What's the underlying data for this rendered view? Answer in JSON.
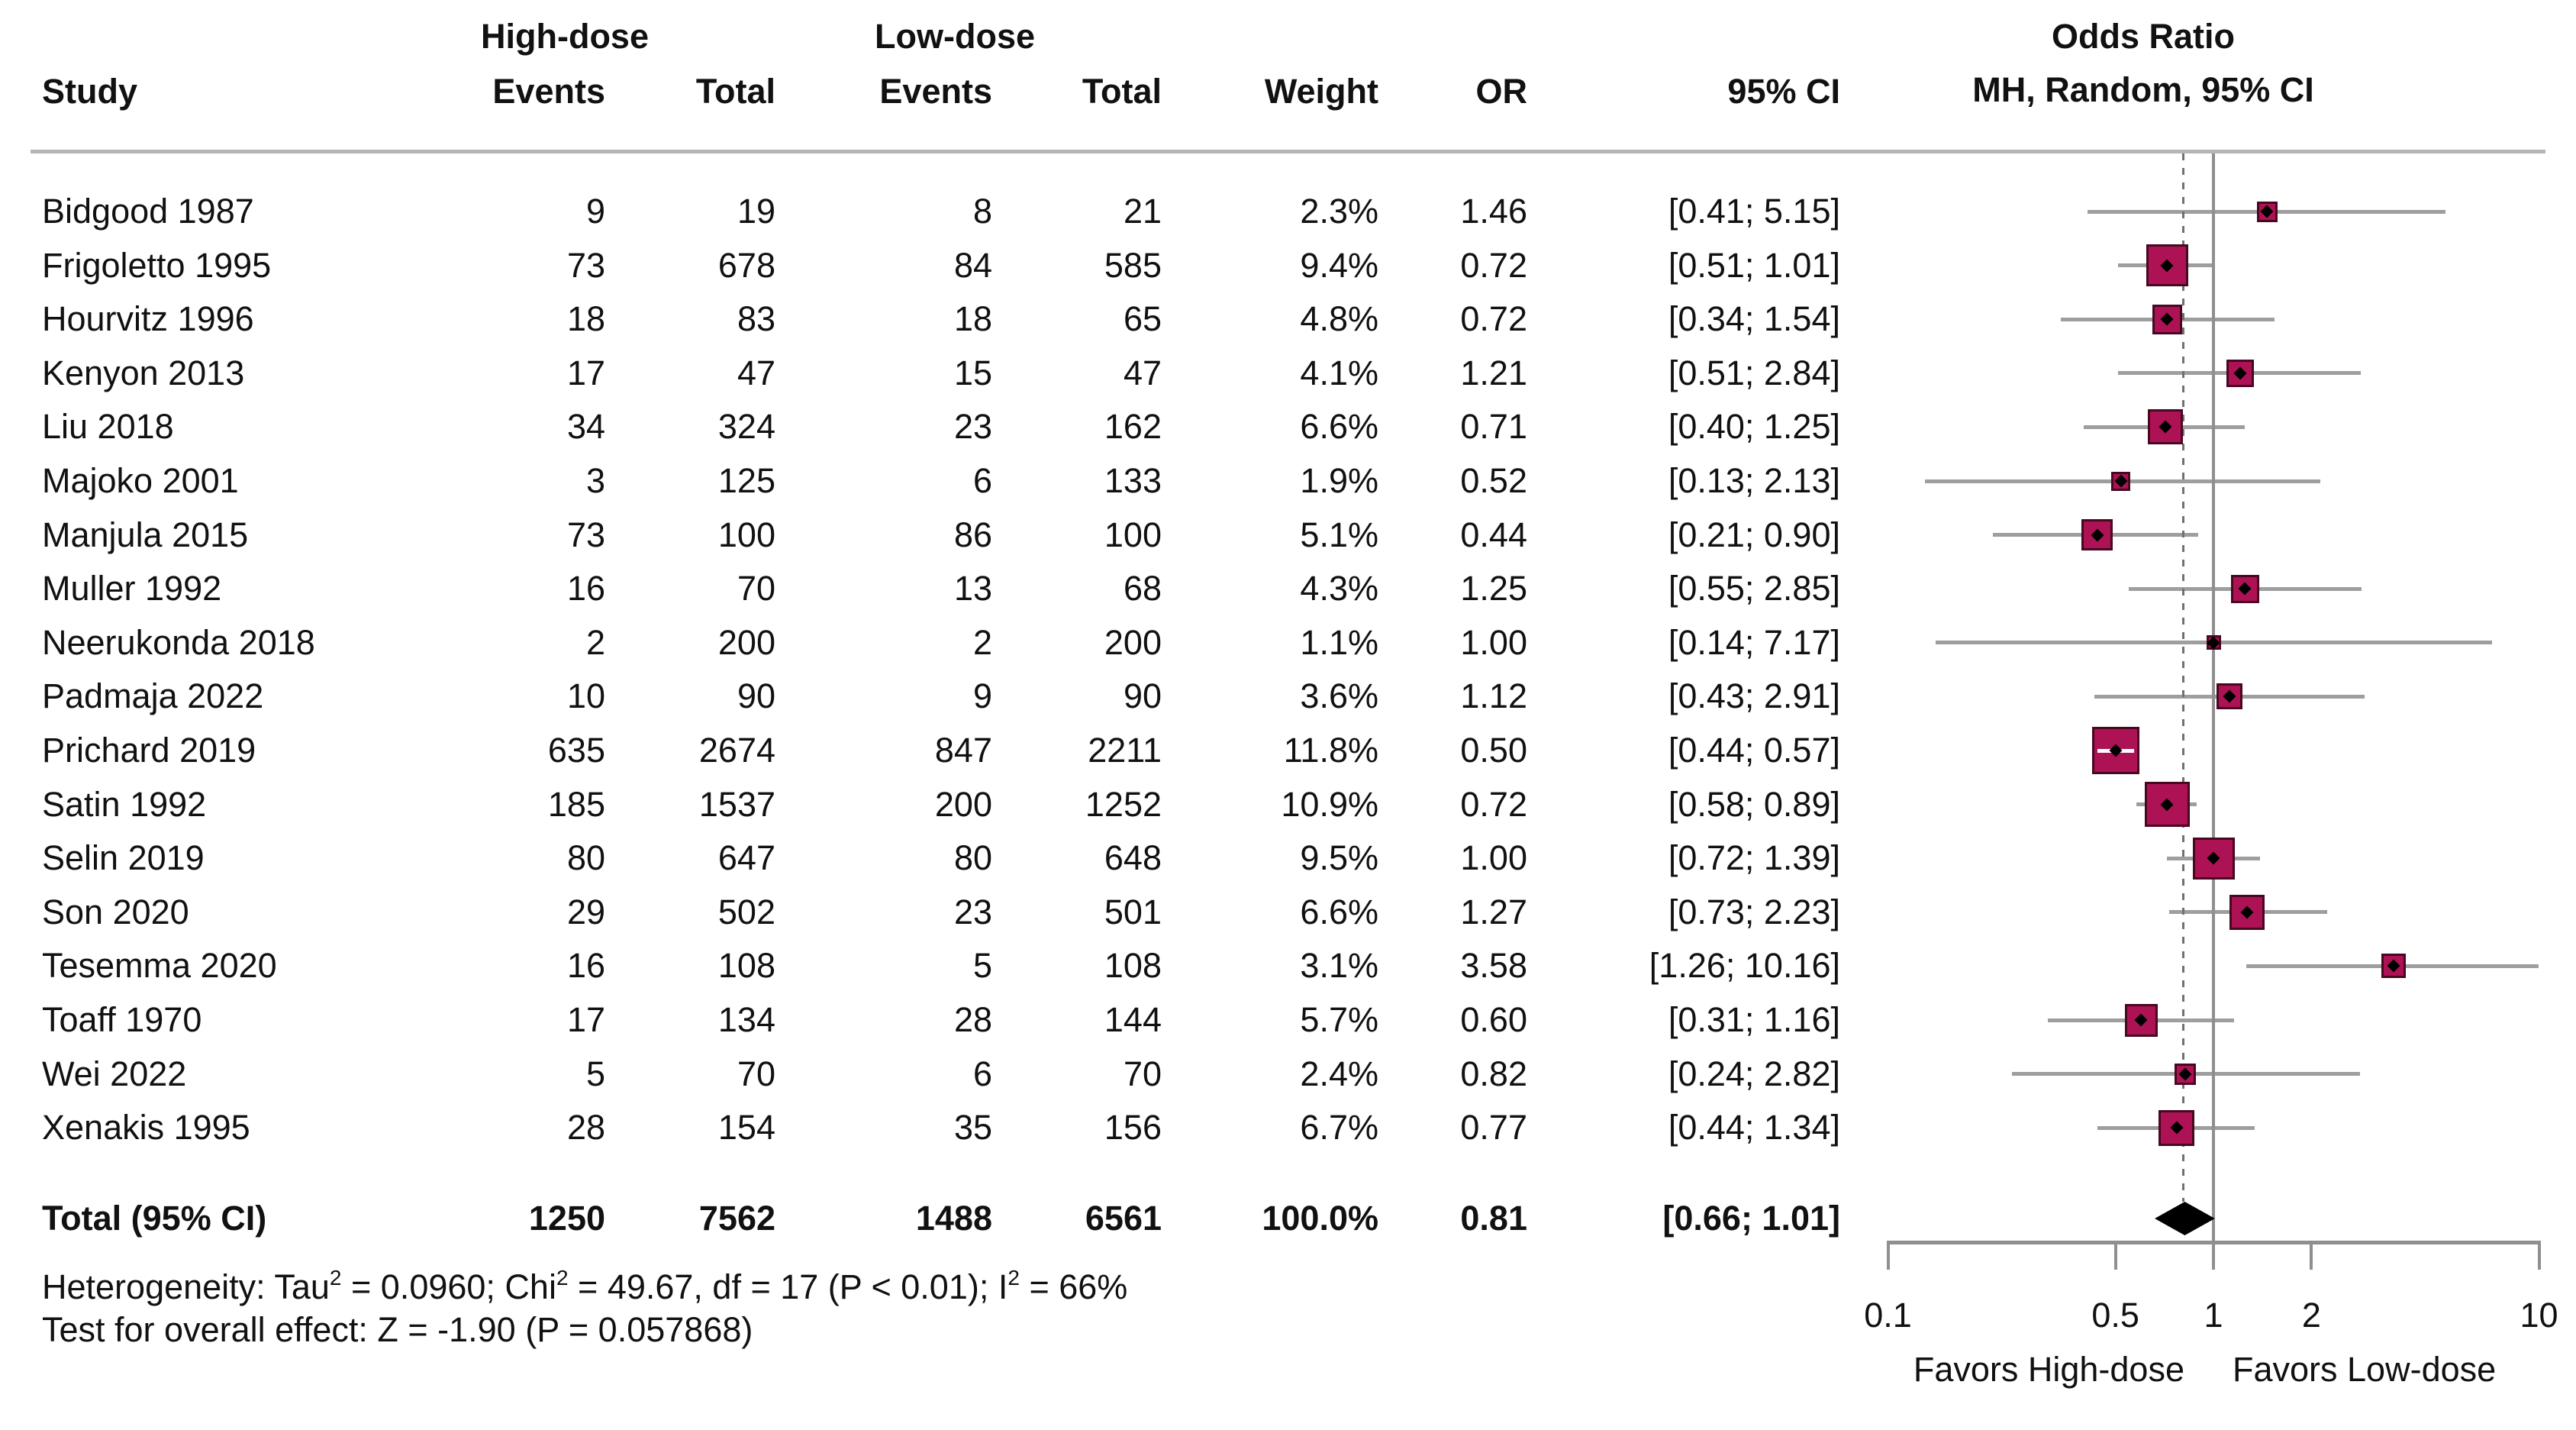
{
  "table": {
    "headers": {
      "study": "Study",
      "group_high": "High-dose",
      "group_low": "Low-dose",
      "events": "Events",
      "total": "Total",
      "weight": "Weight",
      "or": "OR",
      "ci": "95% CI",
      "plot_line1": "Odds Ratio",
      "plot_line2": "MH, Random, 95% CI"
    }
  },
  "chart_data": {
    "type": "scatter",
    "subtype": "forest_plot_meta_analysis",
    "x_scale": "log10",
    "x_range": [
      0.1,
      10
    ],
    "reference_value": 1,
    "pooled_or": 0.81,
    "grid": false,
    "axis_ticks": [
      {
        "label": "0.1",
        "value": 0.1
      },
      {
        "label": "0.5",
        "value": 0.5
      },
      {
        "label": "1",
        "value": 1
      },
      {
        "label": "2",
        "value": 2
      },
      {
        "label": "10",
        "value": 10
      }
    ],
    "favors_left": "Favors High-dose",
    "favors_right": "Favors Low-dose",
    "studies": [
      {
        "name": "Bidgood 1987",
        "high_events": "9",
        "high_total": "19",
        "low_events": "8",
        "low_total": "21",
        "weight_label": "2.3%",
        "weight_pct": 2.3,
        "or": 1.46,
        "or_label": "1.46",
        "ci_low": 0.41,
        "ci_high": 5.15,
        "ci_label": "[0.41; 5.15]"
      },
      {
        "name": "Frigoletto 1995",
        "high_events": "73",
        "high_total": "678",
        "low_events": "84",
        "low_total": "585",
        "weight_label": "9.4%",
        "weight_pct": 9.4,
        "or": 0.72,
        "or_label": "0.72",
        "ci_low": 0.51,
        "ci_high": 1.01,
        "ci_label": "[0.51; 1.01]"
      },
      {
        "name": "Hourvitz 1996",
        "high_events": "18",
        "high_total": "83",
        "low_events": "18",
        "low_total": "65",
        "weight_label": "4.8%",
        "weight_pct": 4.8,
        "or": 0.72,
        "or_label": "0.72",
        "ci_low": 0.34,
        "ci_high": 1.54,
        "ci_label": "[0.34; 1.54]"
      },
      {
        "name": "Kenyon 2013",
        "high_events": "17",
        "high_total": "47",
        "low_events": "15",
        "low_total": "47",
        "weight_label": "4.1%",
        "weight_pct": 4.1,
        "or": 1.21,
        "or_label": "1.21",
        "ci_low": 0.51,
        "ci_high": 2.84,
        "ci_label": "[0.51; 2.84]"
      },
      {
        "name": "Liu 2018",
        "high_events": "34",
        "high_total": "324",
        "low_events": "23",
        "low_total": "162",
        "weight_label": "6.6%",
        "weight_pct": 6.6,
        "or": 0.71,
        "or_label": "0.71",
        "ci_low": 0.4,
        "ci_high": 1.25,
        "ci_label": "[0.40; 1.25]"
      },
      {
        "name": "Majoko 2001",
        "high_events": "3",
        "high_total": "125",
        "low_events": "6",
        "low_total": "133",
        "weight_label": "1.9%",
        "weight_pct": 1.9,
        "or": 0.52,
        "or_label": "0.52",
        "ci_low": 0.13,
        "ci_high": 2.13,
        "ci_label": "[0.13; 2.13]"
      },
      {
        "name": "Manjula 2015",
        "high_events": "73",
        "high_total": "100",
        "low_events": "86",
        "low_total": "100",
        "weight_label": "5.1%",
        "weight_pct": 5.1,
        "or": 0.44,
        "or_label": "0.44",
        "ci_low": 0.21,
        "ci_high": 0.9,
        "ci_label": "[0.21; 0.90]"
      },
      {
        "name": "Muller 1992",
        "high_events": "16",
        "high_total": "70",
        "low_events": "13",
        "low_total": "68",
        "weight_label": "4.3%",
        "weight_pct": 4.3,
        "or": 1.25,
        "or_label": "1.25",
        "ci_low": 0.55,
        "ci_high": 2.85,
        "ci_label": "[0.55; 2.85]"
      },
      {
        "name": "Neerukonda 2018",
        "high_events": "2",
        "high_total": "200",
        "low_events": "2",
        "low_total": "200",
        "weight_label": "1.1%",
        "weight_pct": 1.1,
        "or": 1.0,
        "or_label": "1.00",
        "ci_low": 0.14,
        "ci_high": 7.17,
        "ci_label": "[0.14; 7.17]"
      },
      {
        "name": "Padmaja 2022",
        "high_events": "10",
        "high_total": "90",
        "low_events": "9",
        "low_total": "90",
        "weight_label": "3.6%",
        "weight_pct": 3.6,
        "or": 1.12,
        "or_label": "1.12",
        "ci_low": 0.43,
        "ci_high": 2.91,
        "ci_label": "[0.43; 2.91]"
      },
      {
        "name": "Prichard 2019",
        "high_events": "635",
        "high_total": "2674",
        "low_events": "847",
        "low_total": "2211",
        "weight_label": "11.8%",
        "weight_pct": 11.8,
        "or": 0.5,
        "or_label": "0.50",
        "ci_low": 0.44,
        "ci_high": 0.57,
        "ci_label": "[0.44; 0.57]"
      },
      {
        "name": "Satin 1992",
        "high_events": "185",
        "high_total": "1537",
        "low_events": "200",
        "low_total": "1252",
        "weight_label": "10.9%",
        "weight_pct": 10.9,
        "or": 0.72,
        "or_label": "0.72",
        "ci_low": 0.58,
        "ci_high": 0.89,
        "ci_label": "[0.58; 0.89]"
      },
      {
        "name": "Selin 2019",
        "high_events": "80",
        "high_total": "647",
        "low_events": "80",
        "low_total": "648",
        "weight_label": "9.5%",
        "weight_pct": 9.5,
        "or": 1.0,
        "or_label": "1.00",
        "ci_low": 0.72,
        "ci_high": 1.39,
        "ci_label": "[0.72; 1.39]"
      },
      {
        "name": "Son 2020",
        "high_events": "29",
        "high_total": "502",
        "low_events": "23",
        "low_total": "501",
        "weight_label": "6.6%",
        "weight_pct": 6.6,
        "or": 1.27,
        "or_label": "1.27",
        "ci_low": 0.73,
        "ci_high": 2.23,
        "ci_label": "[0.73; 2.23]"
      },
      {
        "name": "Tesemma 2020",
        "high_events": "16",
        "high_total": "108",
        "low_events": "5",
        "low_total": "108",
        "weight_label": "3.1%",
        "weight_pct": 3.1,
        "or": 3.58,
        "or_label": "3.58",
        "ci_low": 1.26,
        "ci_high": 10.16,
        "ci_label": "[1.26; 10.16]"
      },
      {
        "name": "Toaff 1970",
        "high_events": "17",
        "high_total": "134",
        "low_events": "28",
        "low_total": "144",
        "weight_label": "5.7%",
        "weight_pct": 5.7,
        "or": 0.6,
        "or_label": "0.60",
        "ci_low": 0.31,
        "ci_high": 1.16,
        "ci_label": "[0.31; 1.16]"
      },
      {
        "name": "Wei 2022",
        "high_events": "5",
        "high_total": "70",
        "low_events": "6",
        "low_total": "70",
        "weight_label": "2.4%",
        "weight_pct": 2.4,
        "or": 0.82,
        "or_label": "0.82",
        "ci_low": 0.24,
        "ci_high": 2.82,
        "ci_label": "[0.24; 2.82]"
      },
      {
        "name": "Xenakis 1995",
        "high_events": "28",
        "high_total": "154",
        "low_events": "35",
        "low_total": "156",
        "weight_label": "6.7%",
        "weight_pct": 6.7,
        "or": 0.77,
        "or_label": "0.77",
        "ci_low": 0.44,
        "ci_high": 1.34,
        "ci_label": "[0.44; 1.34]"
      }
    ],
    "total": {
      "label": "Total (95% CI)",
      "high_events": "1250",
      "high_total": "7562",
      "low_events": "1488",
      "low_total": "6561",
      "weight_label": "100.0%",
      "or": 0.81,
      "or_label": "0.81",
      "ci_low": 0.66,
      "ci_high": 1.01,
      "ci_label": "[0.66; 1.01]"
    }
  },
  "footer": {
    "heterogeneity_segments": [
      "Heterogeneity: Tau",
      "2",
      " = 0.0960; Chi",
      "2",
      " = 49.67, df = 17 (P < 0.01); I",
      "2",
      " = 66%"
    ],
    "overall_effect": "Test for overall effect: Z = -1.90 (P = 0.057868)"
  },
  "colors": {
    "square": "#AC1254",
    "square_border": "#470820",
    "diamond": "#000000",
    "ci_line": "#9E9E9E",
    "ref_line": "#8F8F8F",
    "dotted_line": "#707070",
    "header_rule": "#B5B5B5",
    "text": "#111111",
    "background": "#FFFFFF"
  }
}
